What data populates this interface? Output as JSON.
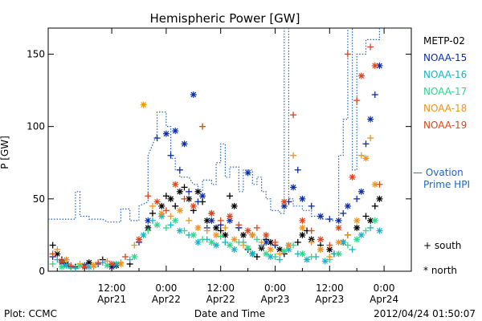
{
  "chart_data": {
    "type": "scatter",
    "title": "Hemispheric Power [GW]",
    "xlabel": "Date and Time",
    "ylabel": "P [GW]",
    "xlim": [
      0,
      80
    ],
    "ylim": [
      0,
      168
    ],
    "x_ticks": [
      {
        "x": 14,
        "label": "12:00",
        "date": "Apr21"
      },
      {
        "x": 26,
        "label": "0:00",
        "date": "Apr22"
      },
      {
        "x": 38,
        "label": "12:00",
        "date": "Apr22"
      },
      {
        "x": 50,
        "label": "0:00",
        "date": "Apr23"
      },
      {
        "x": 62,
        "label": "12:00",
        "date": "Apr23"
      },
      {
        "x": 74,
        "label": "0:00",
        "date": "Apr24"
      }
    ],
    "y_ticks": [
      0,
      50,
      100,
      150
    ],
    "footer_left": "Plot: CCMC",
    "footer_right": "2012/04/24 01:50:07",
    "marker_legend": [
      {
        "symbol": "+",
        "label": "south"
      },
      {
        "symbol": "*",
        "label": "north"
      }
    ],
    "ovation": {
      "name": "— Ovation Prime HPI",
      "color": "#1f63c8",
      "points": [
        [
          0,
          36
        ],
        [
          6,
          36
        ],
        [
          6,
          55
        ],
        [
          7,
          55
        ],
        [
          7,
          38
        ],
        [
          9,
          38
        ],
        [
          9,
          36
        ],
        [
          12,
          36
        ],
        [
          13,
          34
        ],
        [
          16,
          34
        ],
        [
          16,
          43
        ],
        [
          18,
          43
        ],
        [
          18,
          35
        ],
        [
          20,
          35
        ],
        [
          20,
          45
        ],
        [
          22,
          48
        ],
        [
          22,
          80
        ],
        [
          24,
          95
        ],
        [
          24,
          110
        ],
        [
          26,
          110
        ],
        [
          26,
          100
        ],
        [
          27,
          100
        ],
        [
          27,
          78
        ],
        [
          28,
          78
        ],
        [
          28,
          70
        ],
        [
          29,
          70
        ],
        [
          29,
          65
        ],
        [
          31,
          65
        ],
        [
          32,
          60
        ],
        [
          33,
          60
        ],
        [
          33,
          55
        ],
        [
          34,
          55
        ],
        [
          34,
          63
        ],
        [
          36,
          63
        ],
        [
          36,
          60
        ],
        [
          37,
          60
        ],
        [
          37,
          75
        ],
        [
          38,
          75
        ],
        [
          38,
          88
        ],
        [
          39,
          88
        ],
        [
          39,
          65
        ],
        [
          40,
          65
        ],
        [
          40,
          72
        ],
        [
          42,
          72
        ],
        [
          42,
          55
        ],
        [
          43,
          55
        ],
        [
          43,
          70
        ],
        [
          45,
          70
        ],
        [
          45,
          60
        ],
        [
          46,
          60
        ],
        [
          46,
          65
        ],
        [
          47,
          65
        ],
        [
          47,
          55
        ],
        [
          48,
          55
        ],
        [
          48,
          50
        ],
        [
          49,
          50
        ],
        [
          49,
          42
        ],
        [
          51,
          42
        ],
        [
          51,
          40
        ],
        [
          52,
          40
        ],
        [
          52,
          170
        ],
        [
          53,
          170
        ],
        [
          53,
          50
        ],
        [
          54,
          50
        ],
        [
          54,
          45
        ],
        [
          56,
          45
        ],
        [
          56,
          42
        ],
        [
          58,
          42
        ],
        [
          58,
          38
        ],
        [
          60,
          38
        ],
        [
          60,
          36
        ],
        [
          62,
          36
        ],
        [
          62,
          35
        ],
        [
          64,
          35
        ],
        [
          64,
          80
        ],
        [
          65,
          80
        ],
        [
          65,
          105
        ],
        [
          66,
          105
        ],
        [
          66,
          170
        ],
        [
          67,
          170
        ],
        [
          67,
          70
        ],
        [
          68,
          70
        ],
        [
          68,
          150
        ],
        [
          70,
          150
        ],
        [
          70,
          160
        ],
        [
          73,
          160
        ],
        [
          73,
          168
        ],
        [
          80,
          168
        ]
      ]
    },
    "series": [
      {
        "name": "METP-02",
        "color": "#000000",
        "marker": "mixed",
        "points": [
          [
            1,
            18
          ],
          [
            2,
            12
          ],
          [
            3,
            8
          ],
          [
            4,
            5
          ],
          [
            6,
            3
          ],
          [
            9,
            6
          ],
          [
            12,
            8
          ],
          [
            15,
            4
          ],
          [
            18,
            5
          ],
          [
            22,
            30
          ],
          [
            23,
            40
          ],
          [
            25,
            45
          ],
          [
            26,
            52
          ],
          [
            27,
            50
          ],
          [
            28,
            45
          ],
          [
            29,
            55
          ],
          [
            30,
            58
          ],
          [
            31,
            50
          ],
          [
            32,
            42
          ],
          [
            33,
            55
          ],
          [
            34,
            48
          ],
          [
            35,
            35
          ],
          [
            36,
            40
          ],
          [
            37,
            30
          ],
          [
            38,
            28
          ],
          [
            39,
            25
          ],
          [
            40,
            52
          ],
          [
            41,
            45
          ],
          [
            42,
            30
          ],
          [
            43,
            25
          ],
          [
            44,
            15
          ],
          [
            45,
            12
          ],
          [
            46,
            10
          ],
          [
            47,
            16
          ],
          [
            48,
            22
          ],
          [
            49,
            20
          ],
          [
            50,
            18
          ],
          [
            51,
            15
          ],
          [
            52,
            12
          ],
          [
            53,
            18
          ],
          [
            55,
            20
          ],
          [
            56,
            25
          ],
          [
            57,
            28
          ],
          [
            58,
            22
          ],
          [
            60,
            18
          ],
          [
            62,
            15
          ],
          [
            63,
            12
          ],
          [
            65,
            20
          ],
          [
            66,
            25
          ],
          [
            68,
            30
          ],
          [
            70,
            38
          ],
          [
            71,
            35
          ],
          [
            72,
            45
          ],
          [
            73,
            50
          ]
        ]
      },
      {
        "name": "NOAA-15",
        "color": "#0a2ca6",
        "marker": "mixed",
        "points": [
          [
            1,
            10
          ],
          [
            3,
            6
          ],
          [
            5,
            3
          ],
          [
            8,
            4
          ],
          [
            11,
            5
          ],
          [
            14,
            3
          ],
          [
            20,
            20
          ],
          [
            22,
            35
          ],
          [
            24,
            92
          ],
          [
            26,
            95
          ],
          [
            27,
            80
          ],
          [
            28,
            97
          ],
          [
            29,
            70
          ],
          [
            30,
            88
          ],
          [
            31,
            55
          ],
          [
            32,
            122
          ],
          [
            33,
            48
          ],
          [
            34,
            52
          ],
          [
            35,
            30
          ],
          [
            36,
            35
          ],
          [
            38,
            32
          ],
          [
            40,
            35
          ],
          [
            42,
            30
          ],
          [
            44,
            68
          ],
          [
            45,
            25
          ],
          [
            48,
            20
          ],
          [
            50,
            18
          ],
          [
            52,
            45
          ],
          [
            53,
            48
          ],
          [
            54,
            58
          ],
          [
            55,
            70
          ],
          [
            56,
            50
          ],
          [
            58,
            45
          ],
          [
            60,
            38
          ],
          [
            62,
            36
          ],
          [
            64,
            35
          ],
          [
            65,
            40
          ],
          [
            66,
            45
          ],
          [
            68,
            50
          ],
          [
            69,
            55
          ],
          [
            70,
            88
          ],
          [
            71,
            105
          ],
          [
            72,
            122
          ],
          [
            73,
            142
          ]
        ]
      },
      {
        "name": "NOAA-16",
        "color": "#17b3c9",
        "marker": "mixed",
        "points": [
          [
            2,
            8
          ],
          [
            4,
            4
          ],
          [
            6,
            2
          ],
          [
            9,
            3
          ],
          [
            12,
            6
          ],
          [
            15,
            5
          ],
          [
            18,
            8
          ],
          [
            21,
            25
          ],
          [
            23,
            35
          ],
          [
            25,
            38
          ],
          [
            27,
            32
          ],
          [
            29,
            28
          ],
          [
            31,
            25
          ],
          [
            33,
            20
          ],
          [
            35,
            22
          ],
          [
            37,
            18
          ],
          [
            39,
            20
          ],
          [
            41,
            15
          ],
          [
            43,
            20
          ],
          [
            45,
            12
          ],
          [
            47,
            18
          ],
          [
            49,
            10
          ],
          [
            51,
            8
          ],
          [
            53,
            15
          ],
          [
            55,
            12
          ],
          [
            57,
            8
          ],
          [
            59,
            10
          ],
          [
            61,
            7
          ],
          [
            63,
            12
          ],
          [
            65,
            20
          ],
          [
            67,
            15
          ],
          [
            69,
            25
          ],
          [
            71,
            30
          ],
          [
            73,
            28
          ]
        ]
      },
      {
        "name": "NOAA-17",
        "color": "#2fd58a",
        "marker": "mixed",
        "points": [
          [
            1,
            5
          ],
          [
            3,
            3
          ],
          [
            5,
            2
          ],
          [
            7,
            4
          ],
          [
            10,
            3
          ],
          [
            13,
            4
          ],
          [
            16,
            6
          ],
          [
            19,
            10
          ],
          [
            22,
            28
          ],
          [
            24,
            32
          ],
          [
            26,
            30
          ],
          [
            28,
            35
          ],
          [
            30,
            28
          ],
          [
            32,
            25
          ],
          [
            34,
            22
          ],
          [
            36,
            20
          ],
          [
            38,
            24
          ],
          [
            40,
            18
          ],
          [
            42,
            20
          ],
          [
            44,
            16
          ],
          [
            46,
            22
          ],
          [
            48,
            12
          ],
          [
            50,
            10
          ],
          [
            52,
            14
          ],
          [
            54,
            18
          ],
          [
            56,
            12
          ],
          [
            58,
            10
          ],
          [
            60,
            15
          ],
          [
            62,
            8
          ],
          [
            64,
            12
          ],
          [
            66,
            18
          ],
          [
            68,
            22
          ],
          [
            70,
            28
          ],
          [
            72,
            35
          ]
        ]
      },
      {
        "name": "NOAA-18",
        "color": "#f0921c",
        "marker": "mixed",
        "points": [
          [
            2,
            15
          ],
          [
            4,
            8
          ],
          [
            7,
            5
          ],
          [
            10,
            4
          ],
          [
            13,
            7
          ],
          [
            16,
            5
          ],
          [
            19,
            18
          ],
          [
            21,
            115
          ],
          [
            23,
            45
          ],
          [
            25,
            40
          ],
          [
            27,
            38
          ],
          [
            29,
            42
          ],
          [
            31,
            35
          ],
          [
            33,
            30
          ],
          [
            35,
            28
          ],
          [
            37,
            25
          ],
          [
            39,
            30
          ],
          [
            41,
            22
          ],
          [
            43,
            18
          ],
          [
            45,
            25
          ],
          [
            47,
            20
          ],
          [
            49,
            15
          ],
          [
            51,
            12
          ],
          [
            53,
            18
          ],
          [
            54,
            80
          ],
          [
            56,
            30
          ],
          [
            58,
            20
          ],
          [
            60,
            15
          ],
          [
            62,
            10
          ],
          [
            64,
            20
          ],
          [
            66,
            25
          ],
          [
            68,
            35
          ],
          [
            69,
            80
          ],
          [
            70,
            78
          ],
          [
            71,
            92
          ],
          [
            72,
            60
          ]
        ]
      },
      {
        "name": "NOAA-19",
        "color": "#e0431a",
        "marker": "mixed",
        "points": [
          [
            1,
            12
          ],
          [
            3,
            7
          ],
          [
            5,
            4
          ],
          [
            8,
            3
          ],
          [
            11,
            6
          ],
          [
            14,
            5
          ],
          [
            17,
            10
          ],
          [
            20,
            22
          ],
          [
            22,
            52
          ],
          [
            24,
            48
          ],
          [
            26,
            42
          ],
          [
            28,
            60
          ],
          [
            30,
            50
          ],
          [
            32,
            45
          ],
          [
            34,
            100
          ],
          [
            36,
            40
          ],
          [
            38,
            35
          ],
          [
            40,
            38
          ],
          [
            42,
            32
          ],
          [
            44,
            28
          ],
          [
            46,
            30
          ],
          [
            48,
            25
          ],
          [
            50,
            20
          ],
          [
            52,
            48
          ],
          [
            54,
            108
          ],
          [
            56,
            35
          ],
          [
            58,
            28
          ],
          [
            60,
            22
          ],
          [
            62,
            18
          ],
          [
            64,
            30
          ],
          [
            66,
            150
          ],
          [
            67,
            65
          ],
          [
            68,
            118
          ],
          [
            69,
            135
          ],
          [
            71,
            155
          ],
          [
            72,
            142
          ],
          [
            73,
            60
          ]
        ]
      }
    ]
  }
}
